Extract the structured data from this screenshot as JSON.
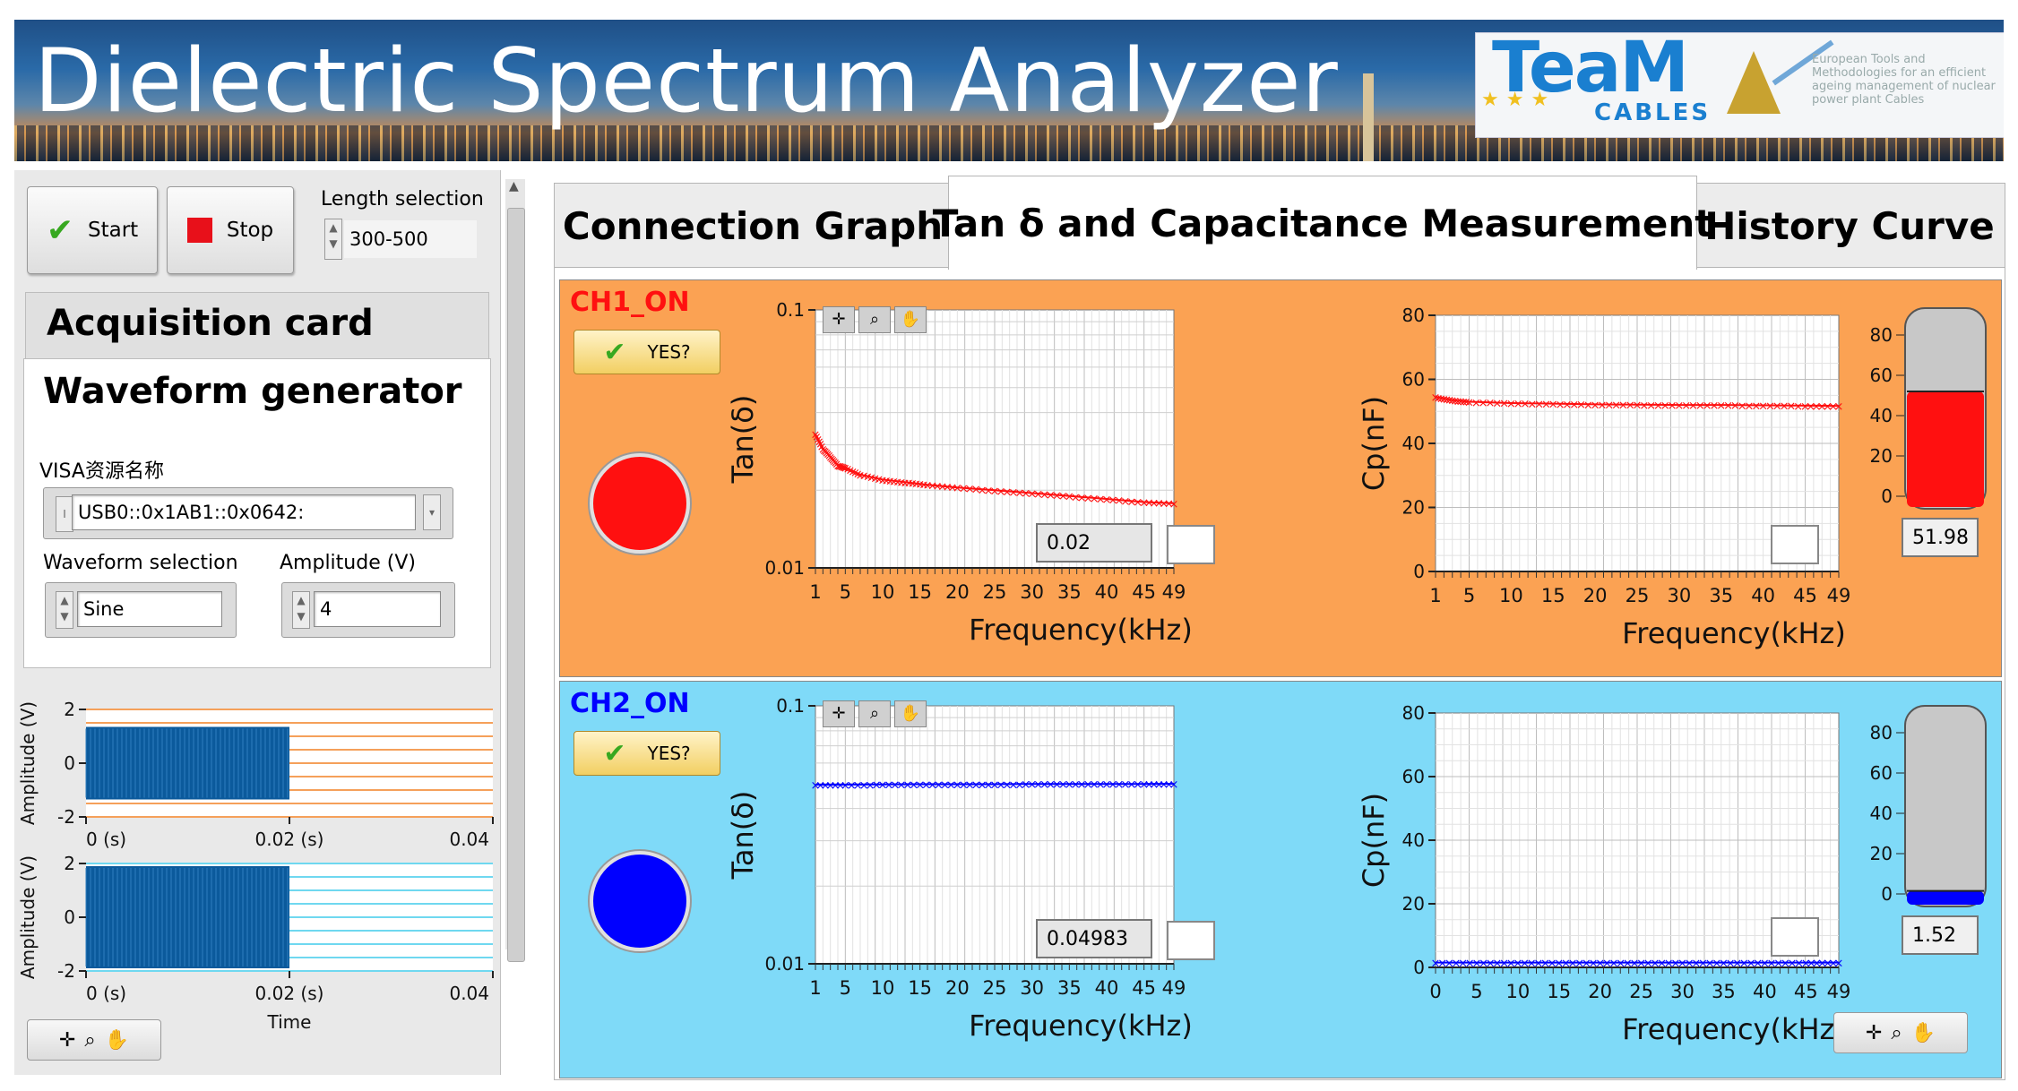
{
  "app": {
    "title": "Dielectric Spectrum Analyzer",
    "logo": {
      "main": "TeaM",
      "sub": "CABLES",
      "tagline": "European Tools and Methodologies for an efficient ageing management of nuclear power plant Cables"
    }
  },
  "controls": {
    "start_label": "Start",
    "stop_label": "Stop",
    "length_label": "Length selection",
    "length_value": "300-500"
  },
  "sections": {
    "acquisition": "Acquisition card",
    "waveform": "Waveform generator"
  },
  "visa": {
    "label": "VISA资源名称",
    "value": "USB0::0x1AB1::0x0642:"
  },
  "waveform": {
    "label": "Waveform selection",
    "value": "Sine"
  },
  "amplitude": {
    "label": "Amplitude (V)",
    "value": "4"
  },
  "tabs": [
    {
      "label": "Connection Graph"
    },
    {
      "label": "Tan δ and Capacitance Measurement"
    },
    {
      "label": "History Curve"
    }
  ],
  "ch1": {
    "name": "CH1_ON",
    "color": "#ff1010",
    "button": "YES?",
    "tan_value": "0.02",
    "cp_value": "51.98",
    "tank_level": 51.98
  },
  "ch2": {
    "name": "CH2_ON",
    "color": "#0000ff",
    "button": "YES?",
    "tan_value": "0.04983",
    "cp_value": "1.52",
    "tank_level": 1.52
  },
  "colors": {
    "accent_ch1": "#fba253",
    "accent_ch2": "#7fdaf8",
    "signal": "#0b5a9c"
  },
  "icons": [
    "check-icon",
    "stop-icon",
    "crosshair-icon",
    "zoom-icon",
    "pan-icon"
  ],
  "chart_data": [
    {
      "type": "line",
      "id": "wave-top",
      "xlabel": "",
      "ylabel": "Amplitude (V)",
      "xlim": [
        0,
        0.04
      ],
      "ylim": [
        -2,
        2
      ],
      "xticks": [
        "0 (s)",
        "0.02 (s)",
        "0.04"
      ],
      "yticks": [
        "2",
        "0",
        "-2"
      ],
      "series": [
        {
          "values_range": [
            -1.35,
            1.35
          ],
          "x_span": [
            0,
            0.02
          ]
        }
      ]
    },
    {
      "type": "line",
      "id": "wave-bottom",
      "xlabel": "Time",
      "ylabel": "Amplitude (V)",
      "xlim": [
        0,
        0.04
      ],
      "ylim": [
        -2,
        2
      ],
      "xticks": [
        "0 (s)",
        "0.02 (s)",
        "0.04"
      ],
      "yticks": [
        "2",
        "0",
        "-2"
      ],
      "series": [
        {
          "values_range": [
            -1.9,
            1.9
          ],
          "x_span": [
            0,
            0.02
          ]
        }
      ]
    },
    {
      "type": "scatter",
      "id": "ch1-tan",
      "scale_y": "log",
      "xlabel": "Frequency(kHz)",
      "ylabel": "Tan(δ)",
      "xlim": [
        1,
        49
      ],
      "ylim": [
        0.01,
        0.1
      ],
      "xticks": [
        "1",
        "5",
        "10",
        "15",
        "20",
        "25",
        "30",
        "35",
        "40",
        "45",
        "49"
      ],
      "yticks": [
        "0.1",
        "0.01"
      ],
      "series": [
        {
          "color": "#ff1010",
          "x": [
            1,
            2,
            3,
            4,
            5,
            7,
            10,
            13,
            16,
            20,
            25,
            30,
            35,
            40,
            45,
            49
          ],
          "y": [
            0.033,
            0.029,
            0.027,
            0.025,
            0.0245,
            0.023,
            0.022,
            0.0215,
            0.021,
            0.0205,
            0.02,
            0.0195,
            0.019,
            0.0185,
            0.018,
            0.0178
          ]
        }
      ]
    },
    {
      "type": "scatter",
      "id": "ch1-cp",
      "xlabel": "Frequency(kHz)",
      "ylabel": "Cp(nF)",
      "xlim": [
        1,
        49
      ],
      "ylim": [
        0,
        80
      ],
      "xticks": [
        "1",
        "5",
        "10",
        "15",
        "20",
        "25",
        "30",
        "35",
        "40",
        "45",
        "49"
      ],
      "yticks": [
        "80",
        "60",
        "40",
        "20",
        "0"
      ],
      "series": [
        {
          "color": "#ff1010",
          "x": [
            1,
            3,
            5,
            10,
            15,
            20,
            25,
            30,
            35,
            40,
            45,
            49
          ],
          "y": [
            54.5,
            53.5,
            53,
            52.6,
            52.4,
            52.2,
            52.1,
            52,
            52,
            51.9,
            51.8,
            51.7
          ]
        }
      ]
    },
    {
      "type": "scatter",
      "id": "ch2-tan",
      "scale_y": "log",
      "xlabel": "Frequency(kHz)",
      "ylabel": "Tan(δ)",
      "xlim": [
        1,
        49
      ],
      "ylim": [
        0.01,
        0.1
      ],
      "xticks": [
        "1",
        "5",
        "10",
        "15",
        "20",
        "25",
        "30",
        "35",
        "40",
        "45",
        "49"
      ],
      "yticks": [
        "0.1",
        "0.01"
      ],
      "series": [
        {
          "color": "#0000ff",
          "x": [
            1,
            5,
            10,
            15,
            20,
            25,
            30,
            35,
            40,
            45,
            49
          ],
          "y": [
            0.0495,
            0.0495,
            0.0496,
            0.0497,
            0.0497,
            0.0497,
            0.0498,
            0.0498,
            0.0498,
            0.0498,
            0.0499
          ]
        }
      ]
    },
    {
      "type": "scatter",
      "id": "ch2-cp",
      "xlabel": "Frequency(kHz)",
      "ylabel": "Cp(nF)",
      "xlim": [
        0,
        49
      ],
      "ylim": [
        0,
        80
      ],
      "xticks": [
        "0",
        "5",
        "10",
        "15",
        "20",
        "25",
        "30",
        "35",
        "40",
        "45",
        "49"
      ],
      "yticks": [
        "80",
        "60",
        "40",
        "20",
        "0"
      ],
      "series": [
        {
          "color": "#0000ff",
          "x": [
            0,
            5,
            10,
            15,
            20,
            25,
            30,
            35,
            40,
            45,
            49
          ],
          "y": [
            1.52,
            1.52,
            1.52,
            1.52,
            1.52,
            1.52,
            1.52,
            1.52,
            1.52,
            1.52,
            1.52
          ]
        }
      ]
    }
  ]
}
